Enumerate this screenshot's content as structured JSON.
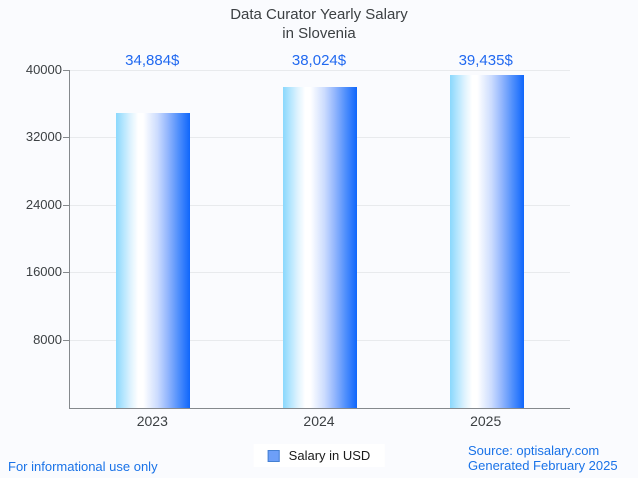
{
  "title": {
    "line1": "Data Curator Yearly Salary",
    "line2": "in Slovenia"
  },
  "chart_data": {
    "type": "bar",
    "title": "Data Curator Yearly Salary in Slovenia",
    "categories": [
      "2023",
      "2024",
      "2025"
    ],
    "values": [
      34884,
      38024,
      39435
    ],
    "value_labels": [
      "34,884$",
      "38,024$",
      "39,435$"
    ],
    "series": [
      {
        "name": "Salary in USD",
        "values": [
          34884,
          38024,
          39435
        ]
      }
    ],
    "ylim": [
      0,
      40000
    ],
    "yticks": [
      "40000",
      "32000",
      "24000",
      "16000",
      "8000"
    ],
    "grid": "horizontal",
    "legend_position": "bottom-center",
    "bar_gradient": [
      "#8ad8fd",
      "#ffffff",
      "#0f66fb"
    ]
  },
  "legend": {
    "label": "Salary in USD",
    "swatch_color": "#6d9ff8"
  },
  "footer": {
    "note": "For informational use only",
    "source_line1": "Source: optisalary.com",
    "source_line2": "Generated February 2025"
  },
  "colors": {
    "background": "#fafbfe",
    "value_label_blue": "#2169f0",
    "footer_blue": "#1a73e8",
    "title_gray": "#3c4043",
    "axis_gray": "#85898d",
    "gridline_gray": "#e8eaed"
  }
}
